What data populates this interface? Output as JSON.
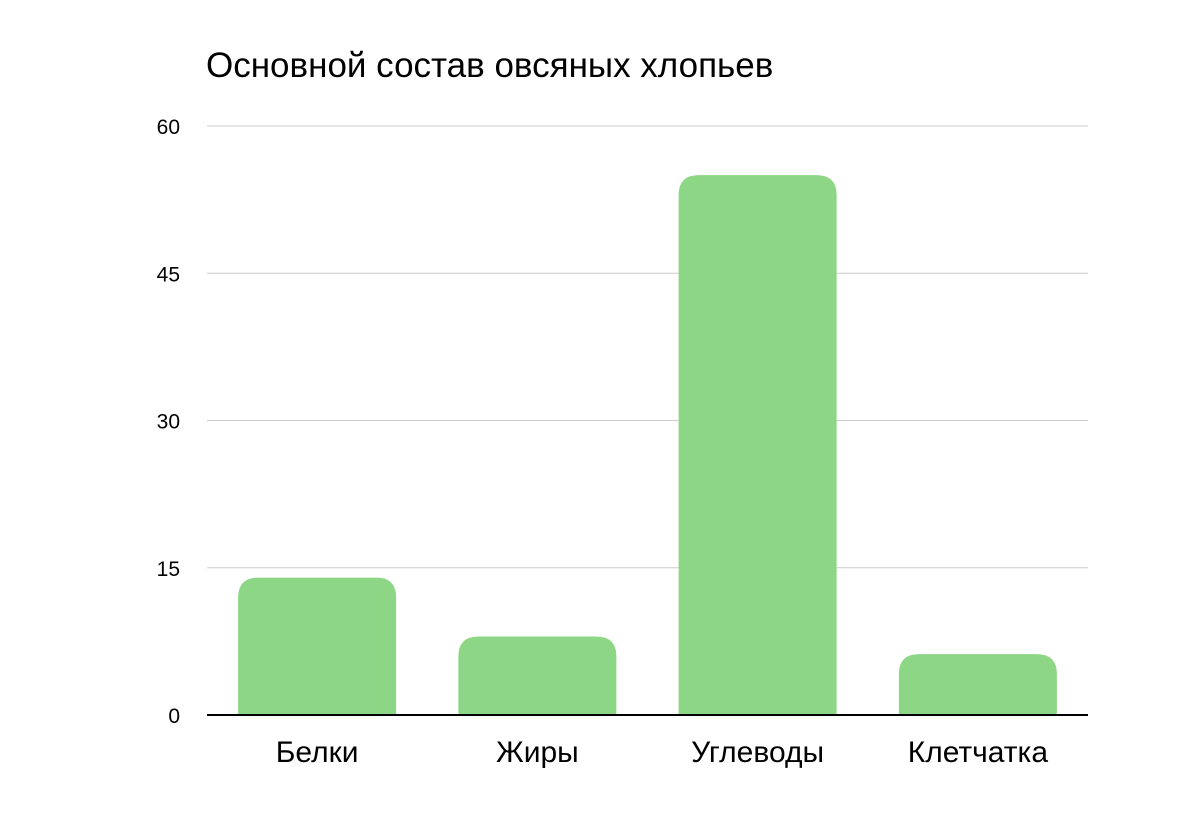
{
  "chart_data": {
    "type": "bar",
    "title": "Основной состав овсяных хлопьев",
    "xlabel": "",
    "ylabel": "",
    "categories": [
      "Белки",
      "Жиры",
      "Углеводы",
      "Клетчатка"
    ],
    "values": [
      14,
      8,
      55,
      6.2
    ],
    "ylim": [
      0,
      60
    ],
    "yticks": [
      "0",
      "15",
      "30",
      "45",
      "60"
    ],
    "grid": true,
    "legend": "none",
    "bar_color": "#8dd685",
    "grid_color": "#cccccc",
    "axis_color": "#000000"
  }
}
